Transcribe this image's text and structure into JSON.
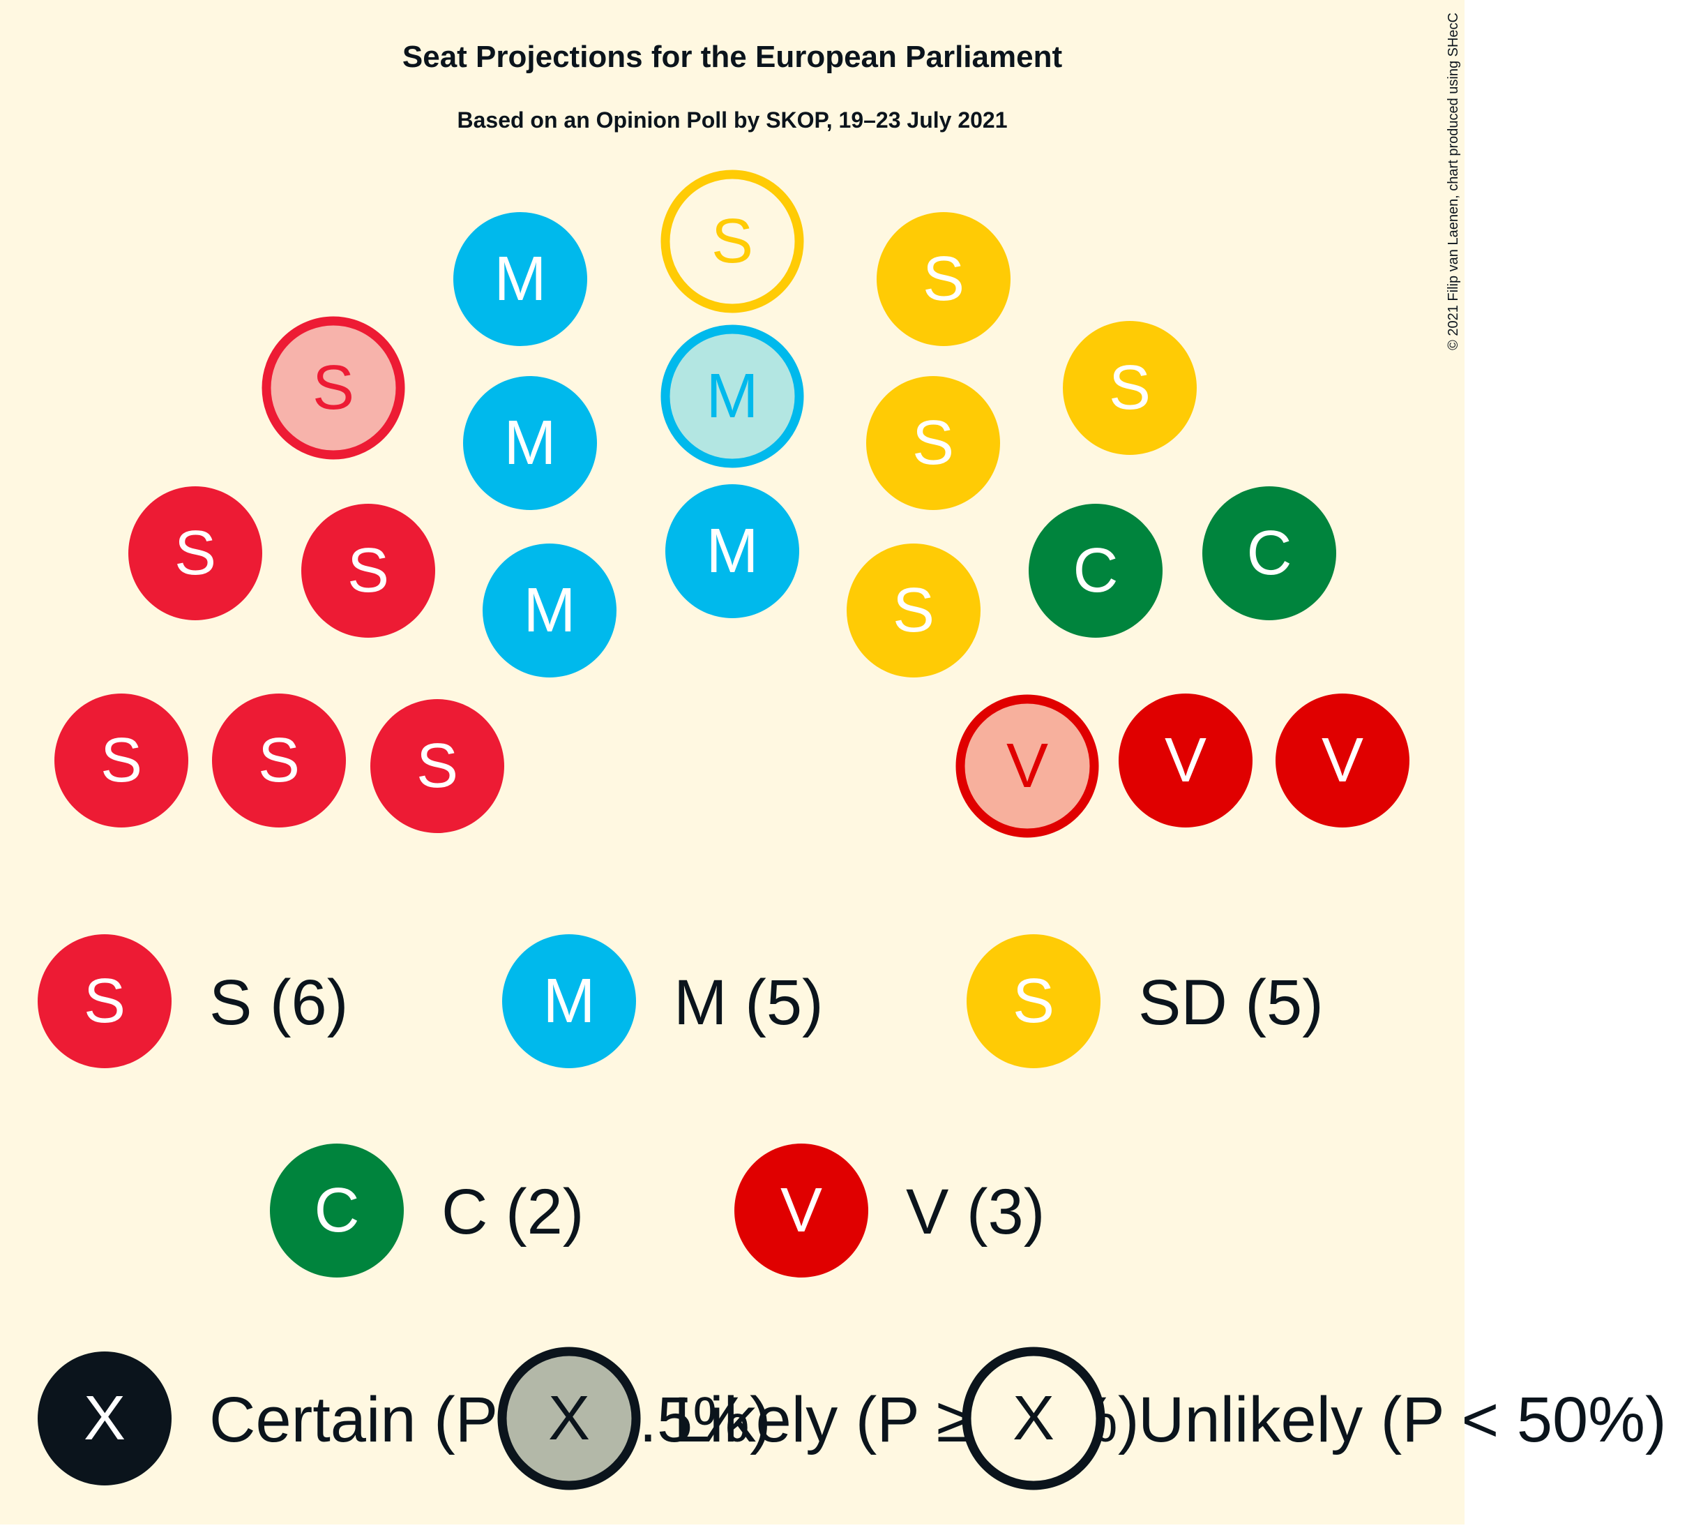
{
  "chart_data": {
    "type": "parliament",
    "title": "Seat Projections for the European Parliament",
    "subtitle": "Based on an Opinion Poll by SKOP, 19–23 July 2021",
    "copyright": "© 2021 Filip van Laenen, chart produced using SHecC",
    "background_color": "#fff8e1",
    "parties": [
      {
        "id": "S",
        "symbol": "S",
        "legend": "S (6)",
        "seats": 6,
        "color": "#ed1b34",
        "light": "#f7b3ab"
      },
      {
        "id": "M",
        "symbol": "M",
        "legend": "M (5)",
        "seats": 5,
        "color": "#00b9ec",
        "light": "#b3e6e2"
      },
      {
        "id": "SD",
        "symbol": "S",
        "legend": "SD (5)",
        "seats": 5,
        "color": "#ffcb05",
        "light": "#ffeea0"
      },
      {
        "id": "C",
        "symbol": "C",
        "legend": "C (2)",
        "seats": 2,
        "color": "#00843d",
        "light": "#b3dab8"
      },
      {
        "id": "V",
        "symbol": "V",
        "legend": "V (3)",
        "seats": 3,
        "color": "#e00000",
        "light": "#f7b09d"
      }
    ],
    "seats": [
      {
        "party": "S",
        "status": "certain"
      },
      {
        "party": "S",
        "status": "certain"
      },
      {
        "party": "S",
        "status": "certain"
      },
      {
        "party": "S",
        "status": "certain"
      },
      {
        "party": "S",
        "status": "certain"
      },
      {
        "party": "S",
        "status": "likely"
      },
      {
        "party": "M",
        "status": "certain"
      },
      {
        "party": "M",
        "status": "certain"
      },
      {
        "party": "M",
        "status": "certain"
      },
      {
        "party": "M",
        "status": "certain"
      },
      {
        "party": "M",
        "status": "likely"
      },
      {
        "party": "SD",
        "status": "unlikely"
      },
      {
        "party": "SD",
        "status": "certain"
      },
      {
        "party": "SD",
        "status": "certain"
      },
      {
        "party": "SD",
        "status": "certain"
      },
      {
        "party": "SD",
        "status": "certain"
      },
      {
        "party": "C",
        "status": "certain"
      },
      {
        "party": "C",
        "status": "certain"
      },
      {
        "party": "V",
        "status": "likely"
      },
      {
        "party": "V",
        "status": "certain"
      },
      {
        "party": "V",
        "status": "certain"
      }
    ],
    "status_legend": [
      {
        "status": "certain",
        "symbol": "X",
        "label": "Certain (P ≥ 97.5%)"
      },
      {
        "status": "likely",
        "symbol": "X",
        "label": "Likely (P ≥ 50%)"
      },
      {
        "status": "unlikely",
        "symbol": "X",
        "label": "Unlikely (P < 50%)"
      }
    ],
    "status_colors": {
      "dark": "#0b141c",
      "grey": "#b3b8a8"
    }
  }
}
